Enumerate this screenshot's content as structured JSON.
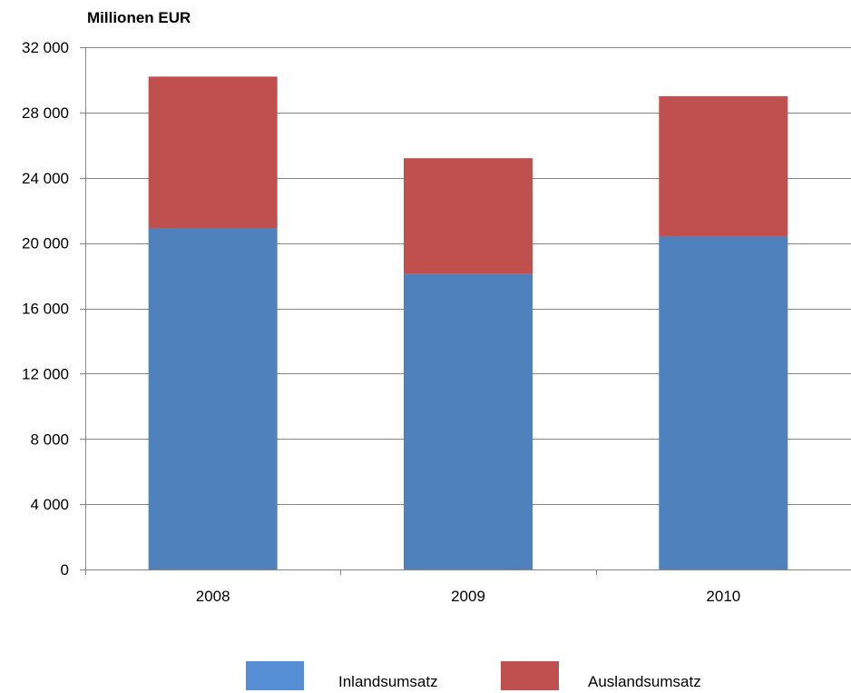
{
  "chart_data": {
    "type": "bar",
    "stacked": true,
    "ylabel": "Millionen EUR",
    "categories": [
      "2008",
      "2009",
      "2010"
    ],
    "series": [
      {
        "name": "Inlandsumsatz",
        "values": [
          20900,
          18100,
          20400
        ],
        "color": "#4F81BD"
      },
      {
        "name": "Auslandsumsatz",
        "values": [
          9300,
          7100,
          8600
        ],
        "color": "#C0504D"
      }
    ],
    "ylim": [
      0,
      32000
    ],
    "yticks": [
      0,
      4000,
      8000,
      12000,
      16000,
      20000,
      24000,
      28000,
      32000
    ],
    "ytick_labels": [
      "0",
      "4 000",
      "8 000",
      "12 000",
      "16 000",
      "20 000",
      "24 000",
      "28 000",
      "32 000"
    ],
    "grid": true,
    "legend_position": "bottom",
    "legend_colors": [
      "#558ED5",
      "#C0504D"
    ]
  }
}
